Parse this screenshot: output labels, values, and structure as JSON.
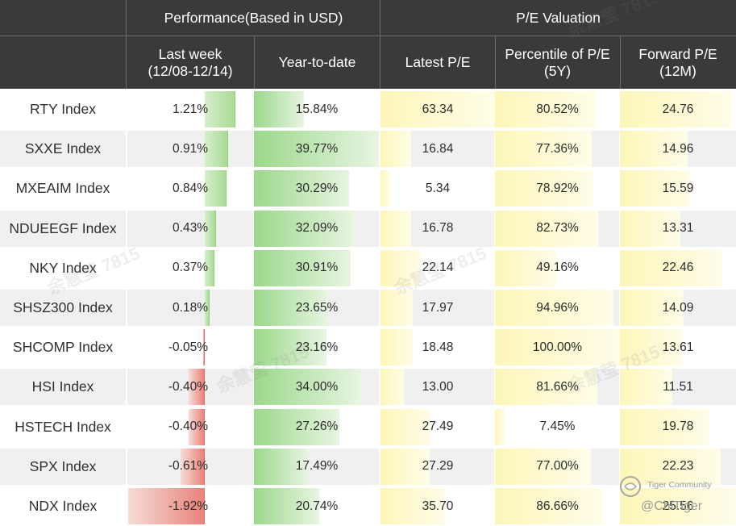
{
  "header": {
    "group_performance": "Performance(Based in USD)",
    "group_pe": "P/E Valuation",
    "col_last_week_line1": "Last week",
    "col_last_week_line2": "(12/08-12/14)",
    "col_ytd": "Year-to-date",
    "col_latest_pe": "Latest P/E",
    "col_percentile_line1": "Percentile of P/E",
    "col_percentile_line2": "(5Y)",
    "col_forward_line1": "Forward P/E",
    "col_forward_line2": "(12M)"
  },
  "chart_data": {
    "type": "table",
    "columns": [
      "Last week (12/08-12/14)",
      "Year-to-date",
      "Latest P/E",
      "Percentile of P/E (5Y)",
      "Forward P/E (12M)"
    ],
    "rows": [
      {
        "name": "RTY Index",
        "last_week": "1.21%",
        "ytd": "15.84%",
        "latest_pe": "63.34",
        "percentile": "80.52%",
        "forward_pe": "24.76"
      },
      {
        "name": "SXXE Index",
        "last_week": "0.91%",
        "ytd": "39.77%",
        "latest_pe": "16.84",
        "percentile": "77.36%",
        "forward_pe": "14.96"
      },
      {
        "name": "MXEAIM Index",
        "last_week": "0.84%",
        "ytd": "30.29%",
        "latest_pe": "5.34",
        "percentile": "78.92%",
        "forward_pe": "15.59"
      },
      {
        "name": "NDUEEGF Index",
        "last_week": "0.43%",
        "ytd": "32.09%",
        "latest_pe": "16.78",
        "percentile": "82.73%",
        "forward_pe": "13.31"
      },
      {
        "name": "NKY Index",
        "last_week": "0.37%",
        "ytd": "30.91%",
        "latest_pe": "22.14",
        "percentile": "49.16%",
        "forward_pe": "22.46"
      },
      {
        "name": "SHSZ300 Index",
        "last_week": "0.18%",
        "ytd": "23.65%",
        "latest_pe": "17.97",
        "percentile": "94.96%",
        "forward_pe": "14.09"
      },
      {
        "name": "SHCOMP Index",
        "last_week": "-0.05%",
        "ytd": "23.16%",
        "latest_pe": "18.48",
        "percentile": "100.00%",
        "forward_pe": "13.61"
      },
      {
        "name": "HSI Index",
        "last_week": "-0.40%",
        "ytd": "34.00%",
        "latest_pe": "13.00",
        "percentile": "81.66%",
        "forward_pe": "11.51"
      },
      {
        "name": "HSTECH Index",
        "last_week": "-0.40%",
        "ytd": "27.26%",
        "latest_pe": "27.49",
        "percentile": "7.45%",
        "forward_pe": "19.78"
      },
      {
        "name": "SPX Index",
        "last_week": "-0.61%",
        "ytd": "17.49%",
        "latest_pe": "27.29",
        "percentile": "77.00%",
        "forward_pe": "22.23"
      },
      {
        "name": "NDX Index",
        "last_week": "-1.92%",
        "ytd": "20.74%",
        "latest_pe": "35.70",
        "percentile": "86.66%",
        "forward_pe": "25.56"
      }
    ]
  },
  "watermark": {
    "text": "余慧莹 7815"
  },
  "branding": {
    "community": "Tiger Community",
    "handle": "@ChiTiger",
    "logo_icon": "tiger-logo-icon"
  }
}
